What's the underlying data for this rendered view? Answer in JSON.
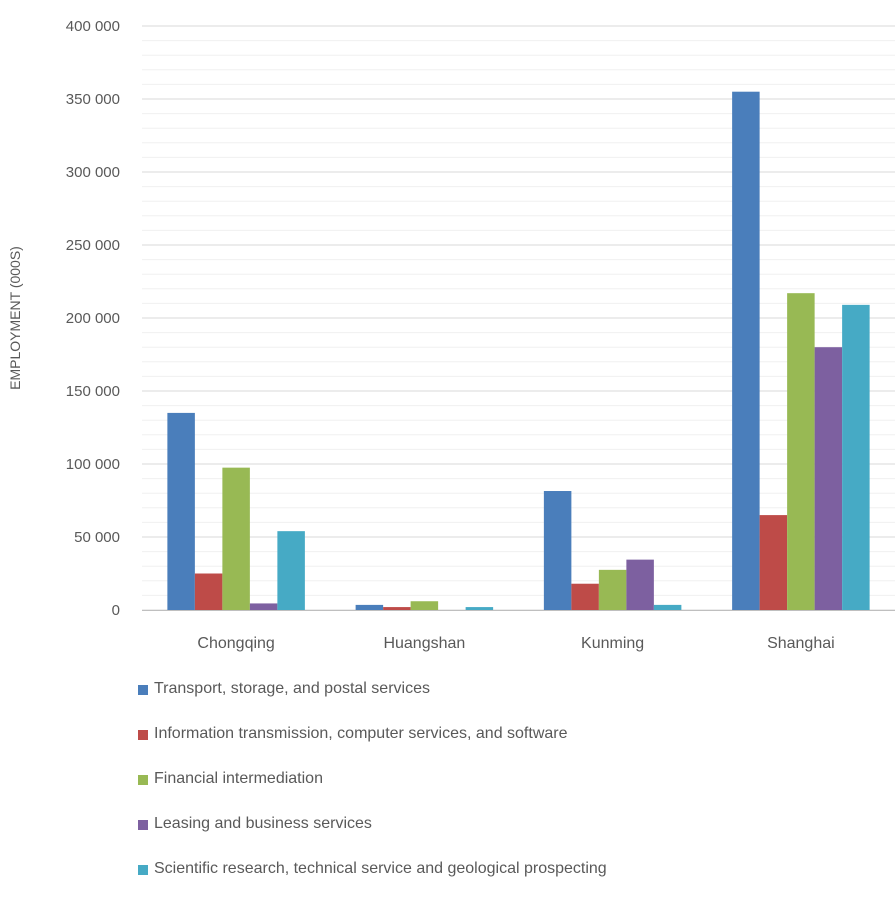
{
  "chart_data": {
    "type": "bar",
    "title": "",
    "ylabel": "EMPLOYMENT (000S)",
    "xlabel": "",
    "categories": [
      "Chongqing",
      "Huangshan",
      "Kunming",
      "Shanghai"
    ],
    "ylim": [
      0,
      400000
    ],
    "y_ticks": [
      0,
      50000,
      100000,
      150000,
      200000,
      250000,
      300000,
      350000,
      400000
    ],
    "y_tick_labels": [
      "0",
      "50 000",
      "100 000",
      "150 000",
      "200 000",
      "250 000",
      "300 000",
      "350 000",
      "400 000"
    ],
    "grid": true,
    "legend_position": "bottom",
    "series": [
      {
        "name": "Transport, storage, and postal services",
        "color": "#4a7ebb",
        "values": [
          135000,
          3500,
          81500,
          355000
        ]
      },
      {
        "name": "Information transmission, computer services, and software",
        "color": "#be4b48",
        "values": [
          25000,
          2000,
          18000,
          65000
        ]
      },
      {
        "name": "Financial intermediation",
        "color": "#98b954",
        "values": [
          97500,
          6000,
          27500,
          217000
        ]
      },
      {
        "name": "Leasing and business services",
        "color": "#7d60a0",
        "values": [
          4500,
          0,
          34500,
          180000
        ]
      },
      {
        "name": "Scientific research, technical service and geological prospecting",
        "color": "#46aac5",
        "values": [
          54000,
          2000,
          3500,
          209000
        ]
      }
    ]
  }
}
